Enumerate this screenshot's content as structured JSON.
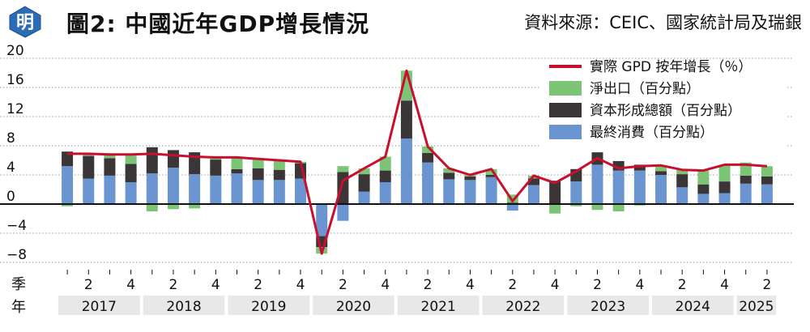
{
  "header": {
    "logo_char": "明",
    "title": "圖2: 中國近年GDP增長情況",
    "source": "資料來源：CEIC、國家統計局及瑞銀"
  },
  "colors": {
    "gdp": "#c8102e",
    "net_exports": "#7cc576",
    "capital": "#3a3536",
    "consumption": "#6a95d0",
    "logo": "#2a6cb5",
    "year_band": "#e8e8e8"
  },
  "chart_data": {
    "type": "bar",
    "subtype": "stacked bar with line overlay",
    "title": "圖2: 中國近年GDP增長情況",
    "xlabel": "季 / 年",
    "ylabel": "",
    "ylim": [
      -8,
      20
    ],
    "yticks": [
      -8,
      -4,
      0,
      4,
      8,
      12,
      16,
      20
    ],
    "grid": true,
    "legend_position": "top-right",
    "quarter_labels": [
      "2",
      "4",
      "2",
      "4",
      "2",
      "4",
      "2",
      "4",
      "2",
      "4",
      "2",
      "4",
      "2",
      "4",
      "2",
      "4",
      "2"
    ],
    "years": [
      "2017",
      "2018",
      "2019",
      "2020",
      "2021",
      "2022",
      "2023",
      "2024",
      "2025"
    ],
    "categories": [
      "2017Q1",
      "2017Q2",
      "2017Q3",
      "2017Q4",
      "2018Q1",
      "2018Q2",
      "2018Q3",
      "2018Q4",
      "2019Q1",
      "2019Q2",
      "2019Q3",
      "2019Q4",
      "2020Q1",
      "2020Q2",
      "2020Q3",
      "2020Q4",
      "2021Q1",
      "2021Q2",
      "2021Q3",
      "2021Q4",
      "2022Q1",
      "2022Q2",
      "2022Q3",
      "2022Q4",
      "2023Q1",
      "2023Q2",
      "2023Q3",
      "2023Q4",
      "2024Q1",
      "2024Q2",
      "2024Q3",
      "2024Q4",
      "2025Q1",
      "2025Q2"
    ],
    "series": [
      {
        "name": "實際 GPD 按年增長（％）",
        "type": "line",
        "values": [
          6.9,
          6.9,
          6.8,
          6.8,
          6.9,
          6.7,
          6.5,
          6.4,
          6.4,
          6.2,
          6.0,
          5.8,
          -6.8,
          3.2,
          4.9,
          6.5,
          18.3,
          7.9,
          4.9,
          4.0,
          4.8,
          0.4,
          3.9,
          2.9,
          4.5,
          6.3,
          4.9,
          5.2,
          5.3,
          4.7,
          4.6,
          5.4,
          5.4,
          5.2
        ]
      },
      {
        "name": "最終消費（百分點）",
        "type": "bar",
        "values": [
          5.2,
          3.5,
          3.9,
          3.0,
          4.2,
          5.0,
          4.1,
          3.9,
          4.2,
          3.3,
          3.3,
          3.5,
          -4.4,
          -2.3,
          1.7,
          3.0,
          9.0,
          5.7,
          3.4,
          3.3,
          3.7,
          -0.9,
          2.6,
          0.1,
          3.1,
          5.4,
          4.6,
          4.6,
          4.0,
          2.3,
          1.4,
          1.5,
          2.8,
          2.7
        ]
      },
      {
        "name": "資本形成總額（百分點）",
        "type": "bar",
        "values": [
          2.0,
          3.1,
          2.4,
          2.5,
          3.6,
          2.4,
          3.0,
          2.2,
          0.6,
          1.6,
          1.4,
          2.1,
          -1.5,
          4.4,
          2.4,
          1.6,
          5.2,
          1.3,
          0.9,
          0.5,
          0.3,
          0.2,
          0.9,
          3.1,
          1.7,
          1.7,
          1.3,
          0.8,
          0.5,
          1.8,
          1.3,
          1.6,
          1.1,
          1.1
        ]
      },
      {
        "name": "淨出口（百分點）",
        "type": "bar",
        "values": [
          -0.3,
          0.3,
          0.5,
          1.3,
          -1.0,
          -0.7,
          -0.6,
          0.3,
          1.6,
          1.3,
          1.3,
          0.2,
          -0.9,
          0.8,
          0.8,
          1.9,
          4.1,
          0.9,
          0.6,
          0.2,
          0.8,
          1.1,
          0.4,
          -1.3,
          -0.3,
          -0.8,
          -1.0,
          -0.2,
          0.8,
          0.6,
          1.9,
          2.3,
          1.8,
          1.4
        ]
      }
    ]
  }
}
